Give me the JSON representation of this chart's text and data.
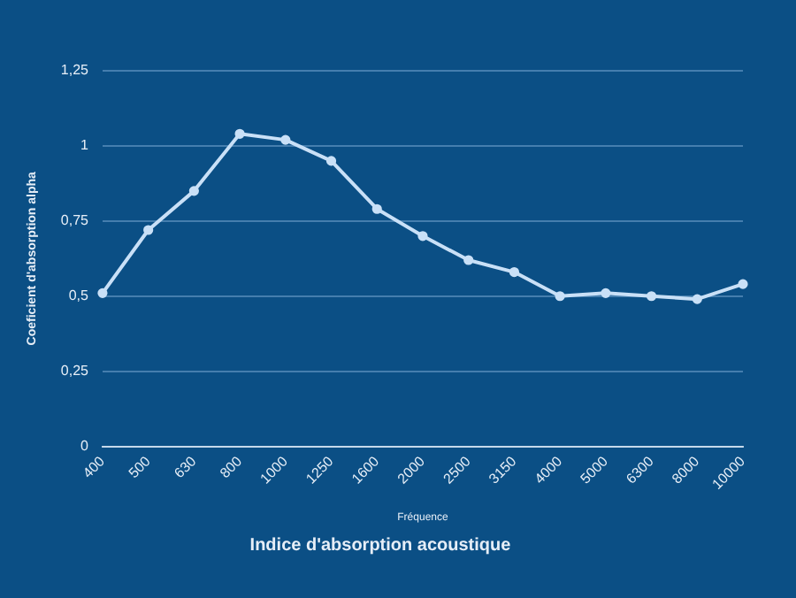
{
  "chart_data": {
    "type": "line",
    "title": "Indice d'absorption acoustique",
    "xlabel": "Fréquence",
    "ylabel": "Coeficient d'absorption alpha",
    "categories": [
      "400",
      "500",
      "630",
      "800",
      "1000",
      "1250",
      "1600",
      "2000",
      "2500",
      "3150",
      "4000",
      "5000",
      "6300",
      "8000",
      "10000"
    ],
    "series": [
      {
        "color": "#c9e0f7",
        "values": [
          0.51,
          0.72,
          0.85,
          1.04,
          1.02,
          0.95,
          0.79,
          0.7,
          0.62,
          0.58,
          0.5,
          0.51,
          0.5,
          0.49,
          0.54
        ]
      }
    ],
    "ylim": [
      0,
      1.25
    ],
    "yticks": [
      {
        "value": 0,
        "label": "0"
      },
      {
        "value": 0.25,
        "label": "0,25"
      },
      {
        "value": 0.5,
        "label": "0,5"
      },
      {
        "value": 0.75,
        "label": "0,75"
      },
      {
        "value": 1,
        "label": "1"
      },
      {
        "value": 1.25,
        "label": "1,25"
      }
    ],
    "grid": "y",
    "marker": "circle",
    "line_style": "solid",
    "legend": false
  }
}
